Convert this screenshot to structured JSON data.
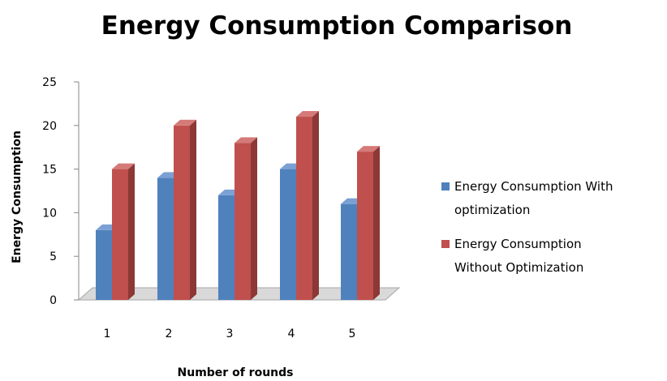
{
  "chart_data": {
    "type": "bar",
    "title": "Energy Consumption Comparison",
    "xlabel": "Number of rounds",
    "ylabel": "Energy Consumption",
    "categories": [
      "1",
      "2",
      "3",
      "4",
      "5"
    ],
    "series": [
      {
        "name": "Energy Consumption  With optimization",
        "legend_lines": [
          "Energy Consumption  With",
          "optimization"
        ],
        "values": [
          8,
          14,
          12,
          15,
          11
        ],
        "color": "#4f81bd",
        "side_color": "#385d8a",
        "top_color": "#7ba0d4"
      },
      {
        "name": "Energy Consumption Without Optimization",
        "legend_lines": [
          "Energy Consumption",
          "Without Optimization"
        ],
        "values": [
          15,
          20,
          18,
          21,
          17
        ],
        "color": "#c0504d",
        "side_color": "#8c3836",
        "top_color": "#d47a78"
      }
    ],
    "ylim": [
      0,
      25
    ],
    "yticks": [
      "0",
      "5",
      "10",
      "15",
      "20",
      "25"
    ],
    "grid": false,
    "legend_position": "right",
    "floor_color": "#d9d9d9"
  }
}
